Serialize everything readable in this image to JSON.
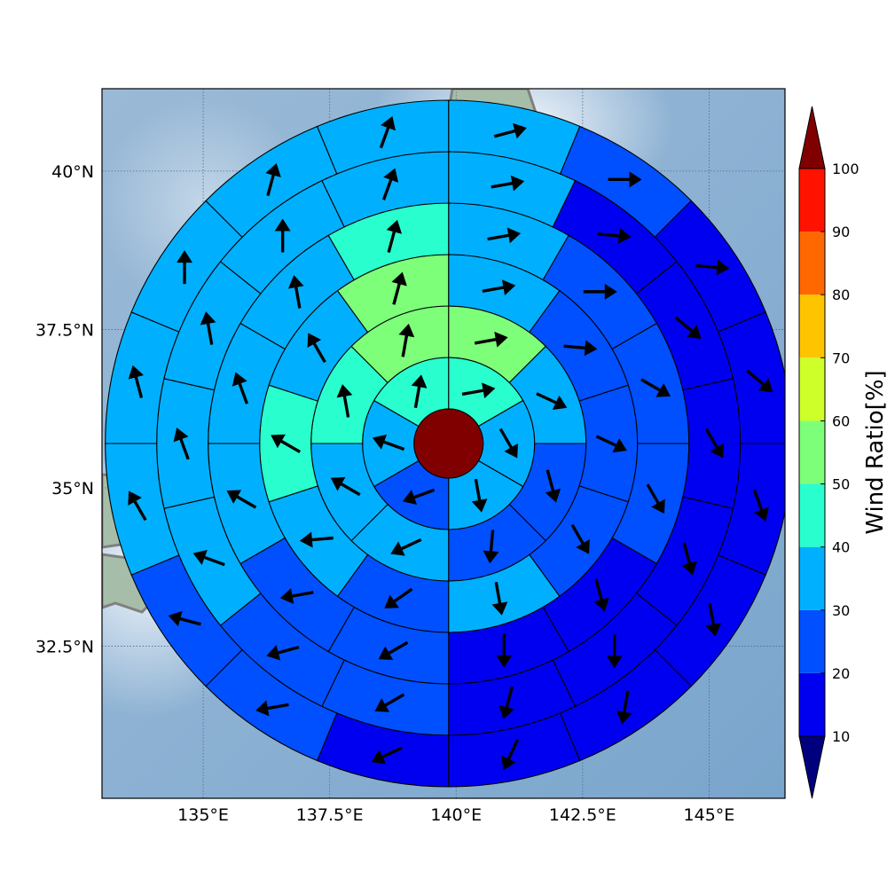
{
  "map": {
    "lat_ticks": [
      "40°N",
      "37.5°N",
      "35°N",
      "32.5°N"
    ],
    "lon_ticks": [
      "135°E",
      "137.5°E",
      "140°E",
      "142.5°E",
      "145°E"
    ],
    "lat_values": [
      40,
      37.5,
      35,
      32.5
    ],
    "lon_values": [
      135,
      137.5,
      140,
      142.5,
      145
    ],
    "lon_range": [
      133.0,
      146.5
    ],
    "lat_range": [
      30.1,
      41.3
    ],
    "center": {
      "lon": 139.85,
      "lat": 35.7
    },
    "ocean_color": "#8fb2d4",
    "land_color": "#a6bea9",
    "coastline_color": "#808080",
    "center_color": "#800000"
  },
  "colorbar": {
    "label": "Wind Ratio[%]",
    "ticks": [
      "10",
      "20",
      "30",
      "40",
      "50",
      "60",
      "70",
      "80",
      "90",
      "100"
    ],
    "tick_values": [
      10,
      20,
      30,
      40,
      50,
      60,
      70,
      80,
      90,
      100
    ],
    "under_color": "#00007f",
    "over_color": "#800000",
    "bins": [
      {
        "from": 10,
        "to": 20,
        "color": "#0000f0"
      },
      {
        "from": 20,
        "to": 30,
        "color": "#0050ff"
      },
      {
        "from": 30,
        "to": 40,
        "color": "#00b0ff"
      },
      {
        "from": 40,
        "to": 50,
        "color": "#29ffce"
      },
      {
        "from": 50,
        "to": 60,
        "color": "#7dff7a"
      },
      {
        "from": 60,
        "to": 70,
        "color": "#ceff29"
      },
      {
        "from": 70,
        "to": 80,
        "color": "#ffc400"
      },
      {
        "from": 80,
        "to": 90,
        "color": "#ff6800"
      },
      {
        "from": 90,
        "to": 100,
        "color": "#ff1300"
      }
    ]
  },
  "chart_data": {
    "type": "polar_sector_map",
    "units": "Wind Ratio[%]",
    "angle_reference": "degrees clockwise from north; sector i spans [i*step, (i+1)*step]",
    "arrow_dir": "degrees clockwise from north (direction arrow points)",
    "rings": [
      {
        "ring": 1,
        "sectors": 6,
        "ratio": [
          45,
          35,
          35,
          25,
          35,
          45
        ],
        "arrow_dir": [
          80,
          150,
          170,
          250,
          290,
          10
        ]
      },
      {
        "ring": 2,
        "sectors": 8,
        "ratio": [
          55,
          35,
          25,
          25,
          35,
          35,
          45,
          55
        ],
        "arrow_dir": [
          80,
          115,
          165,
          185,
          245,
          300,
          350,
          10
        ]
      },
      {
        "ring": 3,
        "sectors": 10,
        "ratio": [
          35,
          25,
          25,
          25,
          35,
          25,
          35,
          45,
          35,
          55
        ],
        "arrow_dir": [
          80,
          95,
          115,
          150,
          170,
          235,
          265,
          300,
          330,
          15
        ]
      },
      {
        "ring": 4,
        "sectors": 12,
        "ratio": [
          35,
          25,
          25,
          25,
          15,
          15,
          25,
          25,
          35,
          35,
          35,
          45
        ],
        "arrow_dir": [
          80,
          90,
          120,
          150,
          165,
          180,
          240,
          260,
          300,
          340,
          350,
          15
        ]
      },
      {
        "ring": 5,
        "sectors": 14,
        "ratio": [
          35,
          15,
          15,
          15,
          15,
          15,
          15,
          25,
          25,
          35,
          35,
          35,
          35,
          35
        ],
        "arrow_dir": [
          80,
          95,
          130,
          150,
          165,
          180,
          195,
          240,
          255,
          290,
          340,
          350,
          0,
          20
        ]
      },
      {
        "ring": 6,
        "sectors": 16,
        "ratio": [
          35,
          25,
          15,
          15,
          15,
          15,
          15,
          15,
          15,
          25,
          25,
          35,
          35,
          35,
          35,
          35
        ],
        "arrow_dir": [
          75,
          90,
          95,
          130,
          160,
          170,
          190,
          205,
          245,
          260,
          285,
          330,
          345,
          0,
          15,
          20
        ]
      }
    ]
  }
}
